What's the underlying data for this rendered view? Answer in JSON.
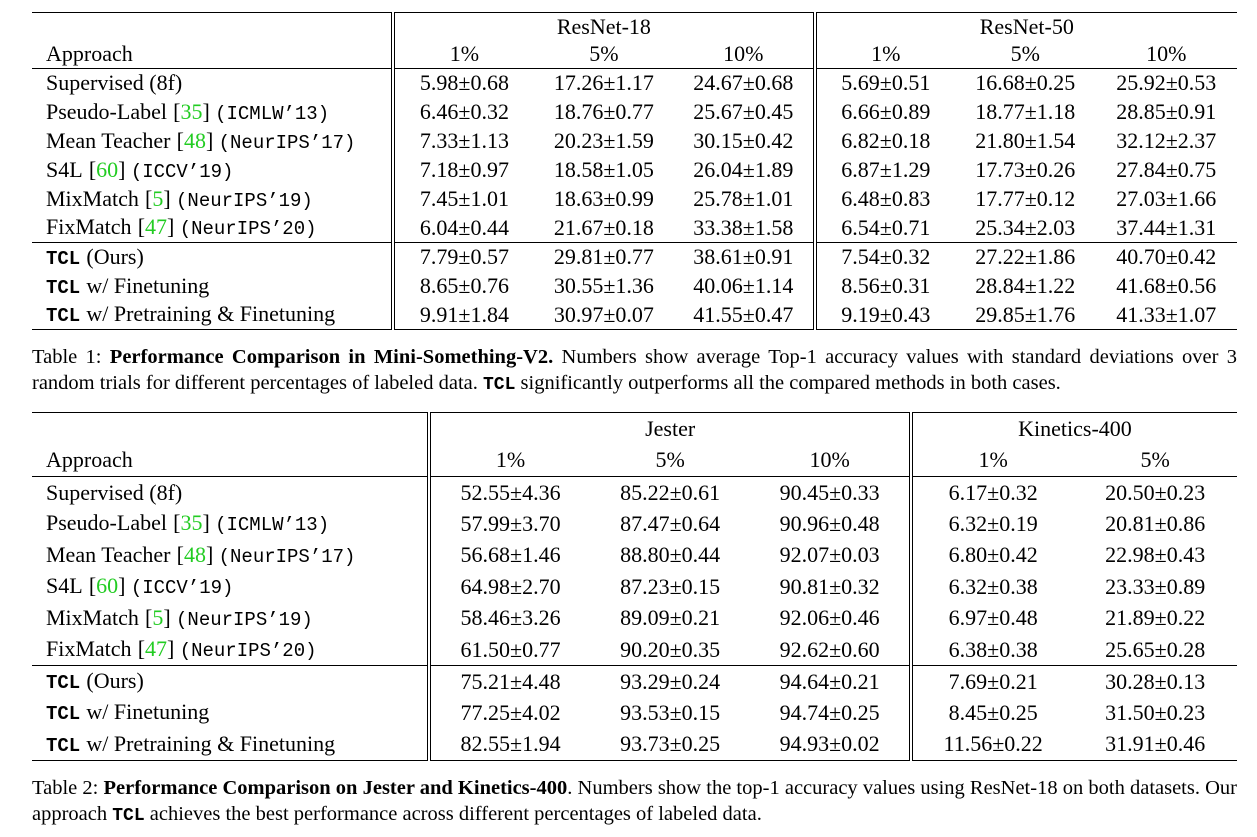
{
  "tables": [
    {
      "header_label": "Approach",
      "groups": [
        {
          "name": "ResNet-18",
          "columns": [
            "1%",
            "5%",
            "10%"
          ]
        },
        {
          "name": "ResNet-50",
          "columns": [
            "1%",
            "5%",
            "10%"
          ]
        }
      ],
      "rows": [
        {
          "approach": {
            "name": "Supervised (8f)"
          },
          "cells": [
            "5.98±0.68",
            "17.26±1.17",
            "24.67±0.68",
            "5.69±0.51",
            "16.68±0.25",
            "25.92±0.53"
          ]
        },
        {
          "approach": {
            "name": "Pseudo-Label",
            "ref": "[35]",
            "venue": "(ICMLW’13)"
          },
          "cells": [
            "6.46±0.32",
            "18.76±0.77",
            "25.67±0.45",
            "6.66±0.89",
            "18.77±1.18",
            "28.85±0.91"
          ]
        },
        {
          "approach": {
            "name": "Mean Teacher",
            "ref": "[48]",
            "venue": "(NeurIPS’17)"
          },
          "cells": [
            "7.33±1.13",
            "20.23±1.59",
            "30.15±0.42",
            "6.82±0.18",
            "21.80±1.54",
            "32.12±2.37"
          ]
        },
        {
          "approach": {
            "name": "S4L",
            "ref": "[60]",
            "venue": "(ICCV’19)"
          },
          "cells": [
            "7.18±0.97",
            "18.58±1.05",
            "26.04±1.89",
            "6.87±1.29",
            "17.73±0.26",
            "27.84±0.75"
          ]
        },
        {
          "approach": {
            "name": "MixMatch",
            "ref": "[5]",
            "venue": "(NeurIPS’19)"
          },
          "cells": [
            "7.45±1.01",
            "18.63±0.99",
            "25.78±1.01",
            "6.48±0.83",
            "17.77±0.12",
            "27.03±1.66"
          ]
        },
        {
          "approach": {
            "name": "FixMatch",
            "ref": "[47]",
            "venue": "(NeurIPS’20)"
          },
          "cells": [
            "6.04±0.44",
            "21.67±0.18",
            "33.38±1.58",
            "6.54±0.71",
            "25.34±2.03",
            "37.44±1.31"
          ]
        },
        {
          "approach": {
            "method": "TCL",
            "name": "(Ours)"
          },
          "cells": [
            "7.79±0.57",
            "29.81±0.77",
            "38.61±0.91",
            "7.54±0.32",
            "27.22±1.86",
            "40.70±0.42"
          ]
        },
        {
          "approach": {
            "method": "TCL",
            "name": "w/ Finetuning"
          },
          "cells": [
            "8.65±0.76",
            "30.55±1.36",
            "40.06±1.14",
            "8.56±0.31",
            "28.84±1.22",
            "41.68±0.56"
          ]
        },
        {
          "approach": {
            "method": "TCL",
            "name": "w/ Pretraining & Finetuning"
          },
          "cells": [
            "9.91±1.84",
            "30.97±0.07",
            "41.55±0.47",
            "9.19±0.43",
            "29.85±1.76",
            "41.33±1.07"
          ]
        }
      ],
      "caption": {
        "label": "Table 1:",
        "title": "Performance Comparison in Mini-Something-V2.",
        "body": [
          {
            "text": "Numbers show average Top-1 accuracy values with standard deviations over 3 random trials for different percentages of labeled data."
          },
          {
            "code": "TCL"
          },
          {
            "text": "significantly outperforms all the compared methods in both cases."
          }
        ]
      }
    },
    {
      "header_label": "Approach",
      "groups": [
        {
          "name": "Jester",
          "columns": [
            "1%",
            "5%",
            "10%"
          ]
        },
        {
          "name": "Kinetics-400",
          "columns": [
            "1%",
            "5%"
          ]
        }
      ],
      "rows": [
        {
          "approach": {
            "name": "Supervised (8f)"
          },
          "cells": [
            "52.55±4.36",
            "85.22±0.61",
            "90.45±0.33",
            "6.17±0.32",
            "20.50±0.23"
          ]
        },
        {
          "approach": {
            "name": "Pseudo-Label",
            "ref": "[35]",
            "venue": "(ICMLW’13)"
          },
          "cells": [
            "57.99±3.70",
            "87.47±0.64",
            "90.96±0.48",
            "6.32±0.19",
            "20.81±0.86"
          ]
        },
        {
          "approach": {
            "name": "Mean Teacher",
            "ref": "[48]",
            "venue": "(NeurIPS’17)"
          },
          "cells": [
            "56.68±1.46",
            "88.80±0.44",
            "92.07±0.03",
            "6.80±0.42",
            "22.98±0.43"
          ]
        },
        {
          "approach": {
            "name": "S4L",
            "ref": "[60]",
            "venue": "(ICCV’19)"
          },
          "cells": [
            "64.98±2.70",
            "87.23±0.15",
            "90.81±0.32",
            "6.32±0.38",
            "23.33±0.89"
          ]
        },
        {
          "approach": {
            "name": "MixMatch",
            "ref": "[5]",
            "venue": "(NeurIPS’19)"
          },
          "cells": [
            "58.46±3.26",
            "89.09±0.21",
            "92.06±0.46",
            "6.97±0.48",
            "21.89±0.22"
          ]
        },
        {
          "approach": {
            "name": "FixMatch",
            "ref": "[47]",
            "venue": "(NeurIPS’20)"
          },
          "cells": [
            "61.50±0.77",
            "90.20±0.35",
            "92.62±0.60",
            "6.38±0.38",
            "25.65±0.28"
          ]
        },
        {
          "approach": {
            "method": "TCL",
            "name": "(Ours)"
          },
          "cells": [
            "75.21±4.48",
            "93.29±0.24",
            "94.64±0.21",
            "7.69±0.21",
            "30.28±0.13"
          ]
        },
        {
          "approach": {
            "method": "TCL",
            "name": "w/ Finetuning"
          },
          "cells": [
            "77.25±4.02",
            "93.53±0.15",
            "94.74±0.25",
            "8.45±0.25",
            "31.50±0.23"
          ]
        },
        {
          "approach": {
            "method": "TCL",
            "name": "w/ Pretraining & Finetuning"
          },
          "cells": [
            "82.55±1.94",
            "93.73±0.25",
            "94.93±0.02",
            "11.56±0.22",
            "31.91±0.46"
          ]
        }
      ],
      "caption": {
        "label": "Table 2:",
        "title": "Performance Comparison on Jester and Kinetics-400",
        "body": [
          {
            "text": ". Numbers show the top-1 accuracy values using ResNet-18 on both datasets. Our approach"
          },
          {
            "code": "TCL"
          },
          {
            "text": "achieves the best performance across different percentages of labeled data."
          }
        ]
      }
    }
  ]
}
